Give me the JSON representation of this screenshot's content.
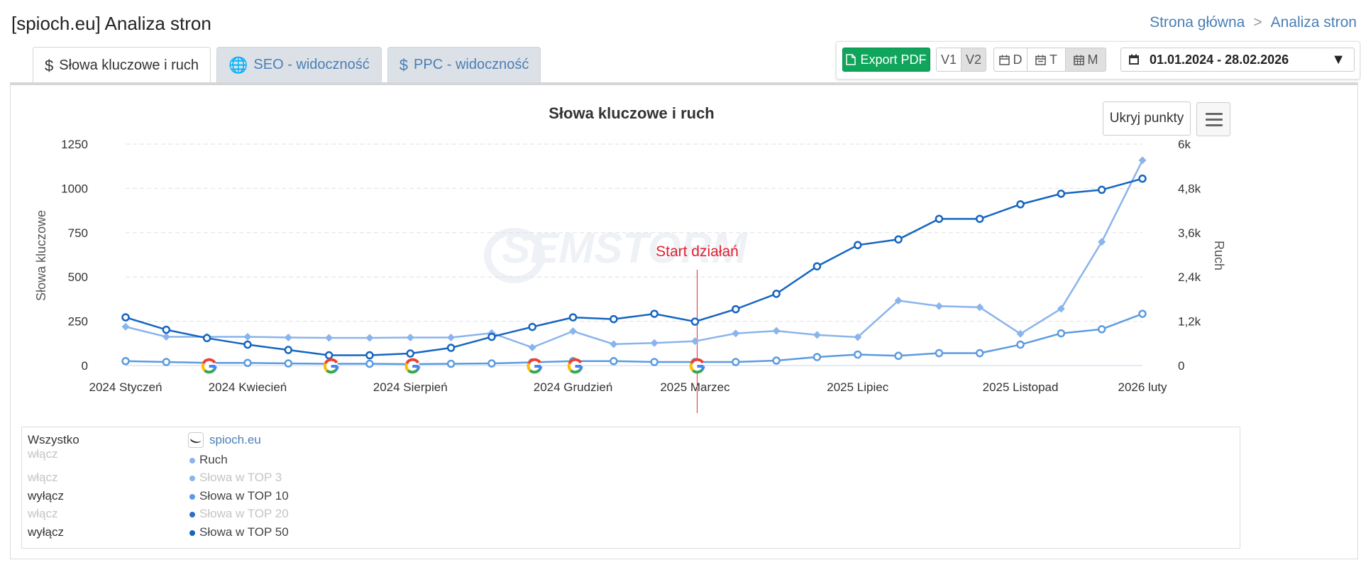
{
  "page": {
    "title": "[spioch.eu] Analiza stron"
  },
  "breadcrumb": {
    "home": "Strona główna",
    "separator": ">",
    "current": "Analiza stron"
  },
  "tabs": [
    {
      "icon": "$",
      "label": "Słowa kluczowe i ruch"
    },
    {
      "icon": "🌐",
      "label": "SEO - widoczność"
    },
    {
      "icon": "$",
      "label": "PPC - widoczność"
    }
  ],
  "toolbar": {
    "export_label": "Export PDF",
    "versions": [
      "V1",
      "V2"
    ],
    "selected_version": "V2",
    "granularity": [
      {
        "icon": "calendar-day-icon",
        "label": "D"
      },
      {
        "icon": "calendar-week-icon",
        "label": "T"
      },
      {
        "icon": "calendar-month-icon",
        "label": "M"
      }
    ],
    "selected_granularity": "M",
    "date_range": "01.01.2024 - 28.02.2026"
  },
  "chart_buttons": {
    "hide_points": "Ukryj punkty"
  },
  "watermark": "SEMSTORM",
  "legend": {
    "all_label": "Wszystko",
    "site_name": "spioch.eu",
    "items": [
      {
        "toggle": "",
        "label": "Ruch",
        "color": "#8ab4ec",
        "active": true
      },
      {
        "toggle": "włącz",
        "label": "Słowa w TOP 3",
        "color": "#8ab4ec",
        "active": false
      },
      {
        "toggle": "wyłącz",
        "label": "Słowa w TOP 10",
        "color": "#5b9be0",
        "active": true
      },
      {
        "toggle": "włącz",
        "label": "Słowa w TOP 20",
        "color": "#2f6fc0",
        "active": false
      },
      {
        "toggle": "wyłącz",
        "label": "Słowa w TOP 50",
        "color": "#1565c0",
        "active": true
      }
    ],
    "extra_toggles": [
      "włącz"
    ]
  },
  "chart_data": {
    "type": "line",
    "title": "Słowa kluczowe i ruch",
    "ylabel": "Słowa kluczowe",
    "y2label": "Ruch",
    "ylim": [
      0,
      1250
    ],
    "y2lim": [
      0,
      6000
    ],
    "yticks": [
      "0",
      "250",
      "500",
      "750",
      "1000",
      "1250"
    ],
    "y2ticks": [
      "0",
      "1,2k",
      "2,4k",
      "3,6k",
      "4,8k",
      "6k"
    ],
    "x": [
      "2024-01",
      "2024-02",
      "2024-03",
      "2024-04",
      "2024-05",
      "2024-06",
      "2024-07",
      "2024-08",
      "2024-09",
      "2024-10",
      "2024-11",
      "2024-12",
      "2025-01",
      "2025-02",
      "2025-03",
      "2025-04",
      "2025-05",
      "2025-06",
      "2025-07",
      "2025-08",
      "2025-09",
      "2025-10",
      "2025-11",
      "2025-12",
      "2026-01",
      "2026-02"
    ],
    "xtick_labels": [
      {
        "index": 0,
        "label": "2024 Styczeń"
      },
      {
        "index": 3,
        "label": "2024 Kwiecień"
      },
      {
        "index": 7,
        "label": "2024 Sierpień"
      },
      {
        "index": 11,
        "label": "2024 Grudzień"
      },
      {
        "index": 14,
        "label": "2025 Marzec"
      },
      {
        "index": 18,
        "label": "2025 Lipiec"
      },
      {
        "index": 22,
        "label": "2025 Listopad"
      },
      {
        "index": 25,
        "label": "2026 luty"
      }
    ],
    "series": [
      {
        "name": "Ruch",
        "axis": "right",
        "marker": "diamond",
        "color": "#8ab4ec",
        "values": [
          1050,
          780,
          780,
          780,
          760,
          750,
          750,
          760,
          760,
          880,
          490,
          930,
          580,
          610,
          660,
          870,
          940,
          830,
          770,
          1760,
          1610,
          1580,
          860,
          1540,
          3350,
          5560
        ]
      },
      {
        "name": "Słowa w TOP 10",
        "axis": "left",
        "marker": "circle",
        "color": "#5b9be0",
        "values": [
          25,
          20,
          15,
          15,
          12,
          10,
          10,
          8,
          10,
          12,
          18,
          25,
          25,
          20,
          20,
          20,
          28,
          48,
          62,
          55,
          70,
          70,
          118,
          182,
          205,
          292
        ]
      },
      {
        "name": "Słowa w TOP 50",
        "axis": "left",
        "marker": "circle",
        "color": "#1565c0",
        "values": [
          272,
          202,
          155,
          118,
          88,
          58,
          58,
          68,
          100,
          162,
          218,
          272,
          262,
          292,
          248,
          318,
          405,
          560,
          680,
          712,
          828,
          828,
          910,
          970,
          992,
          1055
        ]
      }
    ],
    "algorithm_updates_at": [
      2,
      5,
      7,
      10,
      11,
      14
    ],
    "annotation": {
      "label": "Start działań",
      "at_index": 14
    }
  }
}
